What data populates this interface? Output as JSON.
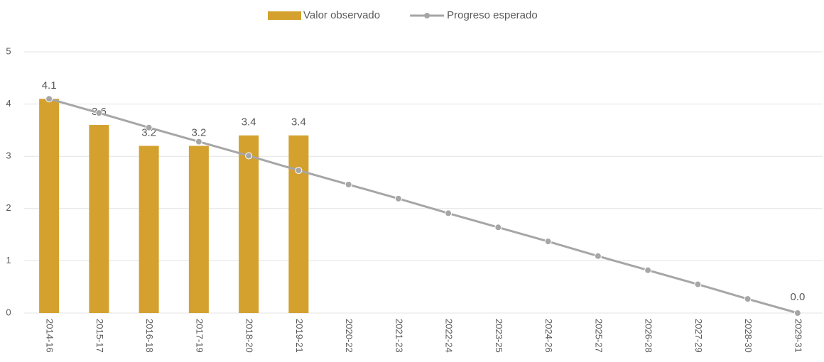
{
  "chart_data": {
    "type": "combo",
    "categories": [
      "2014-16",
      "2015-17",
      "2016-18",
      "2017-19",
      "2018-20",
      "2019-21",
      "2020-22",
      "2021-23",
      "2022-24",
      "2023-25",
      "2024-26",
      "2025-27",
      "2026-28",
      "2027-29",
      "2028-30",
      "2029-31"
    ],
    "series": [
      {
        "name": "Valor observado",
        "type": "bar",
        "color": "#d4a12e",
        "values": [
          4.1,
          3.6,
          3.2,
          3.2,
          3.4,
          3.4,
          null,
          null,
          null,
          null,
          null,
          null,
          null,
          null,
          null,
          null
        ]
      },
      {
        "name": "Progreso esperado",
        "type": "line",
        "color": "#a6a6a6",
        "values": [
          4.1,
          3.83,
          3.55,
          3.28,
          3.01,
          2.73,
          2.46,
          2.19,
          1.91,
          1.64,
          1.37,
          1.09,
          0.82,
          0.55,
          0.27,
          0
        ],
        "value_labels": [
          null,
          null,
          null,
          null,
          null,
          null,
          null,
          null,
          null,
          null,
          null,
          null,
          null,
          null,
          null,
          "0.0"
        ]
      }
    ],
    "ylim": [
      0,
      5
    ],
    "yticks": [
      0,
      1,
      2,
      3,
      4,
      5
    ],
    "grid": true,
    "legend": "top"
  }
}
